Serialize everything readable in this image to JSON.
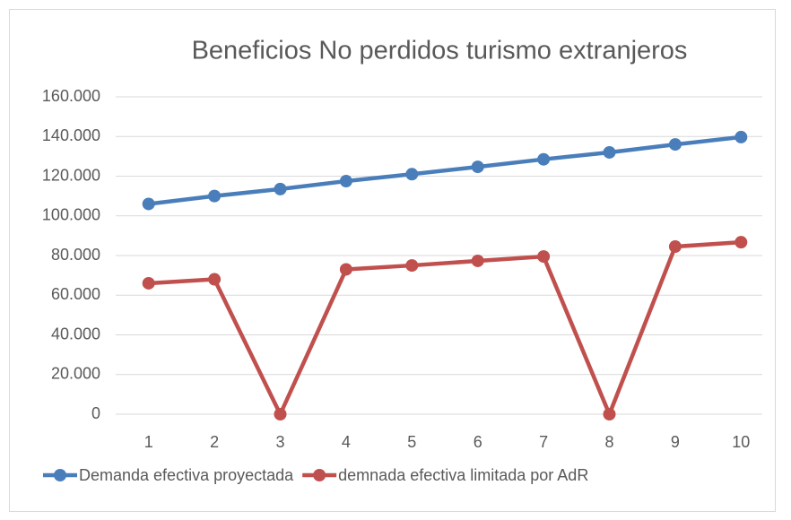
{
  "chart_data": {
    "type": "line",
    "title": "Beneficios No perdidos turismo extranjeros",
    "categories": [
      "1",
      "2",
      "3",
      "4",
      "5",
      "6",
      "7",
      "8",
      "9",
      "10"
    ],
    "series": [
      {
        "name": "Demanda efectiva proyectada",
        "color": "#4a7ebb",
        "values": [
          106000,
          110000,
          113500,
          117500,
          121000,
          124700,
          128500,
          132000,
          136000,
          139700
        ]
      },
      {
        "name": "demnada efectiva limitada por AdR",
        "color": "#c0504d",
        "values": [
          66000,
          68000,
          0,
          73000,
          75000,
          77300,
          79500,
          0,
          84500,
          86700
        ]
      }
    ],
    "ylim": [
      0,
      160000
    ],
    "yticks": [
      {
        "value": 0,
        "label": "0"
      },
      {
        "value": 20000,
        "label": "20.000"
      },
      {
        "value": 40000,
        "label": "40.000"
      },
      {
        "value": 60000,
        "label": "60.000"
      },
      {
        "value": 80000,
        "label": "80.000"
      },
      {
        "value": 100000,
        "label": "100.000"
      },
      {
        "value": 120000,
        "label": "120.000"
      },
      {
        "value": 140000,
        "label": "140.000"
      },
      {
        "value": 160000,
        "label": "160.000"
      }
    ],
    "grid": true,
    "legend": "bottom"
  }
}
